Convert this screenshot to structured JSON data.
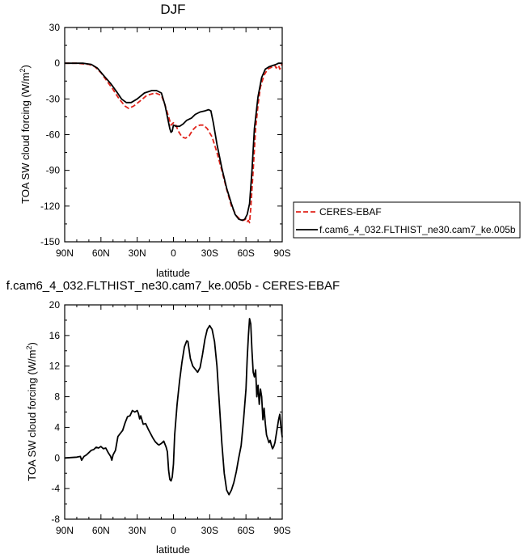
{
  "chart_data": [
    {
      "type": "line",
      "title": "DJF",
      "xlabel": "latitude",
      "ylabel": "TOA SW cloud forcing (W/m",
      "ylabel_sup": "2",
      "ylabel_end": ")",
      "xlim": [
        90,
        -90
      ],
      "ylim": [
        -150,
        30
      ],
      "x_ticks": [
        90,
        60,
        30,
        0,
        -30,
        -60,
        -90
      ],
      "x_tick_labels": [
        "90N",
        "60N",
        "30N",
        "0",
        "30S",
        "60S",
        "90S"
      ],
      "y_ticks": [
        30,
        0,
        -30,
        -60,
        -90,
        -120,
        -150
      ],
      "y_tick_labels": [
        "30",
        "0",
        "-30",
        "-60",
        "-90",
        "-120",
        "-150"
      ],
      "legend_position": "right",
      "series": [
        {
          "name": "CERES-EBAF",
          "color": "#e0241b",
          "dash": "dashed",
          "points": [
            [
              90,
              0
            ],
            [
              80,
              0
            ],
            [
              70,
              -1
            ],
            [
              65,
              -3
            ],
            [
              60,
              -8
            ],
            [
              55,
              -15
            ],
            [
              50,
              -22
            ],
            [
              45,
              -30
            ],
            [
              40,
              -36
            ],
            [
              37,
              -38
            ],
            [
              33,
              -36
            ],
            [
              28,
              -32
            ],
            [
              22,
              -27
            ],
            [
              15,
              -25
            ],
            [
              10,
              -27
            ],
            [
              7,
              -35
            ],
            [
              4,
              -45
            ],
            [
              2,
              -52
            ],
            [
              0,
              -50
            ],
            [
              -2,
              -52
            ],
            [
              -4,
              -57
            ],
            [
              -7,
              -62
            ],
            [
              -10,
              -63
            ],
            [
              -13,
              -61
            ],
            [
              -16,
              -56
            ],
            [
              -19,
              -53
            ],
            [
              -22,
              -52
            ],
            [
              -25,
              -52
            ],
            [
              -28,
              -55
            ],
            [
              -32,
              -62
            ],
            [
              -36,
              -75
            ],
            [
              -40,
              -90
            ],
            [
              -44,
              -106
            ],
            [
              -48,
              -120
            ],
            [
              -52,
              -128
            ],
            [
              -55,
              -131
            ],
            [
              -58,
              -132
            ],
            [
              -60,
              -131
            ],
            [
              -61,
              -133
            ],
            [
              -62,
              -132
            ],
            [
              -63,
              -134
            ],
            [
              -64,
              -122
            ],
            [
              -66,
              -90
            ],
            [
              -68,
              -55
            ],
            [
              -70,
              -35
            ],
            [
              -72,
              -20
            ],
            [
              -75,
              -10
            ],
            [
              -78,
              -5
            ],
            [
              -82,
              -3
            ],
            [
              -84,
              -2
            ],
            [
              -85,
              -4
            ],
            [
              -87,
              -2
            ],
            [
              -88,
              -5
            ],
            [
              -90,
              0
            ]
          ]
        },
        {
          "name": "f.cam6_4_032.FLTHIST_ne30.cam7_ke.005b",
          "color": "#000000",
          "dash": "solid",
          "points": [
            [
              90,
              0
            ],
            [
              75,
              0
            ],
            [
              68,
              -1
            ],
            [
              63,
              -4
            ],
            [
              58,
              -10
            ],
            [
              52,
              -17
            ],
            [
              47,
              -24
            ],
            [
              43,
              -30
            ],
            [
              39,
              -33
            ],
            [
              35,
              -33
            ],
            [
              30,
              -30
            ],
            [
              24,
              -25
            ],
            [
              18,
              -23
            ],
            [
              14,
              -23
            ],
            [
              10,
              -25
            ],
            [
              7,
              -35
            ],
            [
              5,
              -45
            ],
            [
              3,
              -55
            ],
            [
              2,
              -58
            ],
            [
              1,
              -57
            ],
            [
              0,
              -52
            ],
            [
              -2,
              -53
            ],
            [
              -5,
              -53
            ],
            [
              -8,
              -51
            ],
            [
              -11,
              -48
            ],
            [
              -15,
              -46
            ],
            [
              -18,
              -43
            ],
            [
              -22,
              -41
            ],
            [
              -26,
              -40
            ],
            [
              -29,
              -39
            ],
            [
              -31,
              -40
            ],
            [
              -33,
              -50
            ],
            [
              -36,
              -68
            ],
            [
              -40,
              -88
            ],
            [
              -44,
              -105
            ],
            [
              -48,
              -118
            ],
            [
              -51,
              -127
            ],
            [
              -54,
              -131
            ],
            [
              -57,
              -132
            ],
            [
              -59,
              -131
            ],
            [
              -61,
              -127
            ],
            [
              -63,
              -118
            ],
            [
              -65,
              -90
            ],
            [
              -67,
              -55
            ],
            [
              -70,
              -28
            ],
            [
              -73,
              -12
            ],
            [
              -76,
              -5
            ],
            [
              -79,
              -3
            ],
            [
              -82,
              -2
            ],
            [
              -85,
              -1
            ],
            [
              -87,
              0
            ],
            [
              -90,
              0
            ]
          ]
        }
      ]
    },
    {
      "type": "line",
      "title": "f.cam6_4_032.FLTHIST_ne30.cam7_ke.005b - CERES-EBAF",
      "xlabel": "latitude",
      "ylabel": "TOA SW cloud forcing (W/m",
      "ylabel_sup": "2",
      "ylabel_end": ")",
      "xlim": [
        90,
        -90
      ],
      "ylim": [
        -8,
        20
      ],
      "x_ticks": [
        90,
        60,
        30,
        0,
        -30,
        -60,
        -90
      ],
      "x_tick_labels": [
        "90N",
        "60N",
        "30N",
        "0",
        "30S",
        "60S",
        "90S"
      ],
      "y_ticks": [
        20,
        16,
        12,
        8,
        4,
        0,
        -4,
        -8
      ],
      "y_tick_labels": [
        "20",
        "16",
        "12",
        "8",
        "4",
        "0",
        "-4",
        "-8"
      ],
      "series": [
        {
          "name": "",
          "color": "#000000",
          "dash": "solid",
          "points": [
            [
              90,
              0
            ],
            [
              80,
              0.1
            ],
            [
              77,
              0.2
            ],
            [
              76,
              -0.3
            ],
            [
              74,
              0.2
            ],
            [
              72,
              0.4
            ],
            [
              70,
              0.7
            ],
            [
              68,
              1.0
            ],
            [
              66,
              1.1
            ],
            [
              64,
              1.4
            ],
            [
              62,
              1.3
            ],
            [
              60,
              1.5
            ],
            [
              58,
              1.2
            ],
            [
              56,
              1.3
            ],
            [
              54,
              0.7
            ],
            [
              52,
              0.2
            ],
            [
              51,
              -0.3
            ],
            [
              50,
              0.4
            ],
            [
              48,
              1.0
            ],
            [
              46,
              2.8
            ],
            [
              44,
              3.2
            ],
            [
              42,
              3.6
            ],
            [
              40,
              4.6
            ],
            [
              38,
              5.4
            ],
            [
              36,
              5.5
            ],
            [
              34,
              6.2
            ],
            [
              32,
              6.0
            ],
            [
              30,
              6.2
            ],
            [
              29,
              5.8
            ],
            [
              28,
              5.1
            ],
            [
              27,
              5.5
            ],
            [
              25,
              4.4
            ],
            [
              23,
              4.5
            ],
            [
              21,
              3.8
            ],
            [
              19,
              3.2
            ],
            [
              17,
              2.6
            ],
            [
              15,
              2.1
            ],
            [
              13,
              1.8
            ],
            [
              12,
              1.7
            ],
            [
              10,
              1.9
            ],
            [
              8,
              2.2
            ],
            [
              6,
              1.4
            ],
            [
              5,
              0.8
            ],
            [
              4,
              -1.6
            ],
            [
              3,
              -2.8
            ],
            [
              2,
              -3.0
            ],
            [
              1,
              -2.5
            ],
            [
              0,
              -0.8
            ],
            [
              -1,
              3
            ],
            [
              -3,
              7
            ],
            [
              -5,
              10
            ],
            [
              -7,
              12.5
            ],
            [
              -9,
              14.5
            ],
            [
              -11,
              15.3
            ],
            [
              -12,
              15.2
            ],
            [
              -14,
              13
            ],
            [
              -16,
              12
            ],
            [
              -18,
              11.6
            ],
            [
              -20,
              11.2
            ],
            [
              -22,
              11.8
            ],
            [
              -24,
              13.5
            ],
            [
              -26,
              15.5
            ],
            [
              -28,
              16.8
            ],
            [
              -30,
              17.3
            ],
            [
              -32,
              16.8
            ],
            [
              -34,
              15.2
            ],
            [
              -36,
              12
            ],
            [
              -38,
              7
            ],
            [
              -40,
              2
            ],
            [
              -42,
              -2
            ],
            [
              -44,
              -4.2
            ],
            [
              -46,
              -4.8
            ],
            [
              -48,
              -4.2
            ],
            [
              -50,
              -3.2
            ],
            [
              -52,
              -1.8
            ],
            [
              -54,
              0
            ],
            [
              -56,
              1.6
            ],
            [
              -58,
              5
            ],
            [
              -60,
              9
            ],
            [
              -61,
              13
            ],
            [
              -62,
              16
            ],
            [
              -63,
              18.2
            ],
            [
              -64,
              17.5
            ],
            [
              -65,
              14
            ],
            [
              -66,
              11.2
            ],
            [
              -67,
              10.6
            ],
            [
              -68,
              11.5
            ],
            [
              -69,
              8
            ],
            [
              -70,
              9.5
            ],
            [
              -71,
              7
            ],
            [
              -72,
              9
            ],
            [
              -73,
              8
            ],
            [
              -74,
              5
            ],
            [
              -75,
              6.5
            ],
            [
              -76,
              4.5
            ],
            [
              -77,
              3
            ],
            [
              -78,
              2.5
            ],
            [
              -79,
              2
            ],
            [
              -80,
              2.3
            ],
            [
              -81,
              1.7
            ],
            [
              -82,
              1.2
            ],
            [
              -83,
              1.5
            ],
            [
              -84,
              2
            ],
            [
              -85,
              3
            ],
            [
              -86,
              4
            ],
            [
              -87,
              5
            ],
            [
              -88,
              5.7
            ],
            [
              -89,
              4
            ],
            [
              -90,
              2.7
            ]
          ]
        }
      ]
    }
  ]
}
